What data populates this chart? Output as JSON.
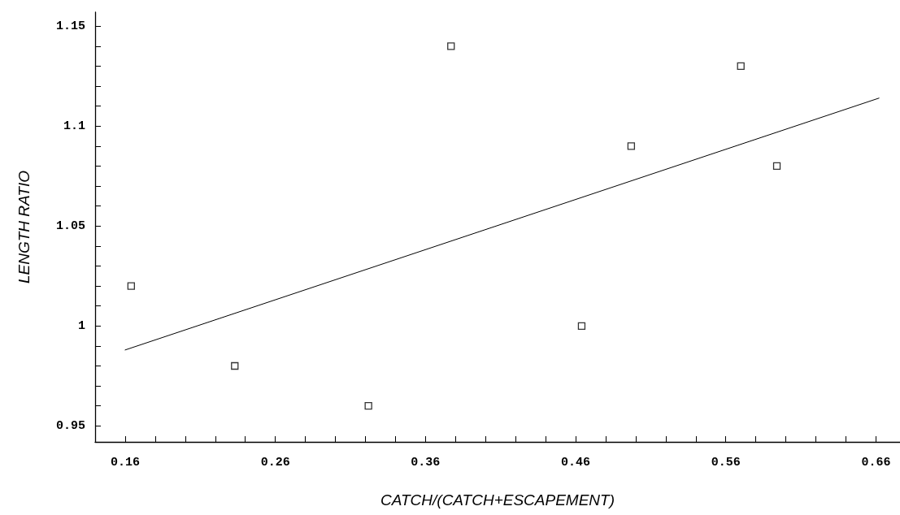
{
  "chart_data": {
    "type": "scatter",
    "xlabel": "CATCH/(CATCH+ESCAPEMENT)",
    "ylabel": "LENGTH RATIO",
    "marker": "square",
    "grid": false,
    "x": [
      0.164,
      0.233,
      0.322,
      0.377,
      0.464,
      0.497,
      0.57,
      0.594
    ],
    "series": [
      {
        "color": "#000000",
        "values": [
          1.02,
          0.98,
          0.96,
          1.14,
          1.0,
          1.09,
          1.13,
          1.08
        ]
      },
      {
        "type": "line",
        "color": "#000000",
        "x": [
          0.16,
          0.662
        ],
        "values": [
          0.988,
          1.114
        ],
        "marker": "none",
        "line_style": "solid"
      }
    ],
    "xlim": [
      0.14,
      0.676
    ],
    "ylim": [
      0.942,
      1.157
    ],
    "xticks": [
      0.16,
      {
        "value": 0.18,
        "label": null
      },
      {
        "value": 0.2,
        "label": null
      },
      {
        "value": 0.22,
        "label": null
      },
      {
        "value": 0.24,
        "label": null
      },
      0.26,
      {
        "value": 0.28,
        "label": null
      },
      {
        "value": 0.3,
        "label": null
      },
      {
        "value": 0.32,
        "label": null
      },
      {
        "value": 0.34,
        "label": null
      },
      0.36,
      {
        "value": 0.38,
        "label": null
      },
      {
        "value": 0.4,
        "label": null
      },
      {
        "value": 0.42,
        "label": null
      },
      {
        "value": 0.44,
        "label": null
      },
      0.46,
      {
        "value": 0.48,
        "label": null
      },
      {
        "value": 0.5,
        "label": null
      },
      {
        "value": 0.52,
        "label": null
      },
      {
        "value": 0.54,
        "label": null
      },
      0.56,
      {
        "value": 0.58,
        "label": null
      },
      {
        "value": 0.6,
        "label": null
      },
      {
        "value": 0.62,
        "label": null
      },
      {
        "value": 0.64,
        "label": null
      },
      0.66
    ],
    "yticks": [
      0.95,
      {
        "value": 0.96,
        "label": null
      },
      {
        "value": 0.97,
        "label": null
      },
      {
        "value": 0.98,
        "label": null
      },
      {
        "value": 0.99,
        "label": null
      },
      1,
      {
        "value": 1.01,
        "label": null
      },
      {
        "value": 1.02,
        "label": null
      },
      {
        "value": 1.03,
        "label": null
      },
      {
        "value": 1.04,
        "label": null
      },
      1.05,
      {
        "value": 1.06,
        "label": null
      },
      {
        "value": 1.07,
        "label": null
      },
      {
        "value": 1.08,
        "label": null
      },
      {
        "value": 1.09,
        "label": null
      },
      1.1,
      {
        "value": 1.11,
        "label": null
      },
      {
        "value": 1.12,
        "label": null
      },
      {
        "value": 1.13,
        "label": null
      },
      {
        "value": 1.14,
        "label": null
      },
      1.15
    ]
  }
}
